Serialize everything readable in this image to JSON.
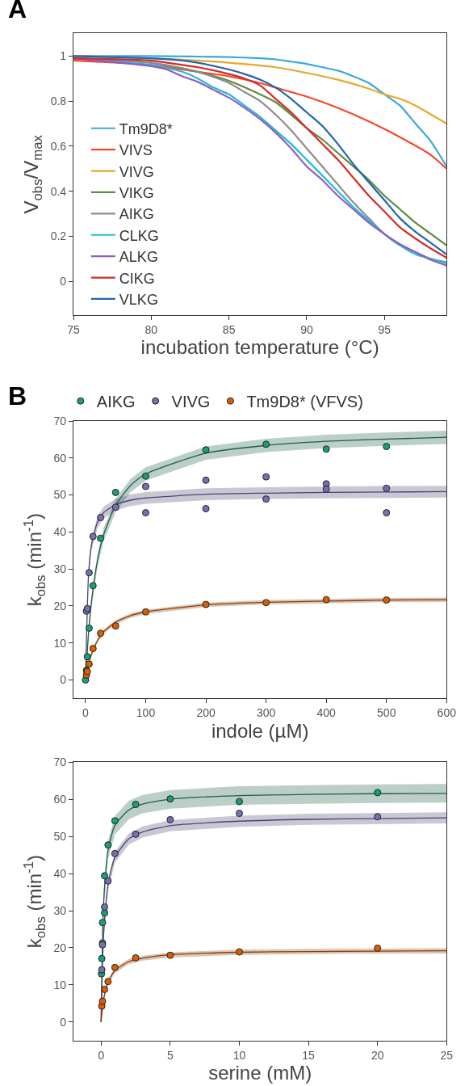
{
  "chart_data": [
    {
      "type": "line",
      "xlabel": "incubation temperature (°C)",
      "ylabel": "V$_{obs}$/V$_{max}$",
      "annotations": [
        "A"
      ],
      "xlim": [
        75,
        99
      ],
      "ylim": [
        -0.15,
        1.1
      ],
      "xticks": [
        75,
        80,
        85,
        90,
        95
      ],
      "yticks": [
        0,
        0.2,
        0.4,
        0.6,
        0.8,
        1
      ],
      "legend": "left",
      "marker": "none",
      "series": [
        {
          "name": "Tm9D8*",
          "color": "#3aa8e0",
          "x": [
            75,
            80,
            85,
            87,
            88,
            89,
            90,
            91,
            92,
            93,
            94,
            95,
            96,
            97,
            98,
            99
          ],
          "values": [
            1.0,
            1.0,
            0.995,
            0.99,
            0.985,
            0.975,
            0.965,
            0.95,
            0.935,
            0.91,
            0.88,
            0.83,
            0.78,
            0.7,
            0.62,
            0.51
          ]
        },
        {
          "name": "VIVS",
          "color": "#f5482a",
          "x": [
            75,
            80,
            83,
            85,
            87,
            88,
            90,
            92,
            94,
            96,
            98,
            99
          ],
          "values": [
            0.98,
            0.96,
            0.93,
            0.91,
            0.88,
            0.86,
            0.82,
            0.77,
            0.71,
            0.64,
            0.56,
            0.5
          ]
        },
        {
          "name": "VIVG",
          "color": "#e6a82c",
          "x": [
            75,
            80,
            83,
            85,
            88,
            90,
            92,
            94,
            95,
            96,
            97,
            98,
            99
          ],
          "values": [
            1.0,
            0.99,
            0.98,
            0.97,
            0.95,
            0.925,
            0.895,
            0.855,
            0.83,
            0.81,
            0.78,
            0.74,
            0.7
          ]
        },
        {
          "name": "VIKG",
          "color": "#5e8c3a",
          "x": [
            75,
            80,
            83,
            85,
            87,
            88,
            89,
            90,
            91,
            92,
            93,
            94,
            95,
            96,
            97,
            98,
            99
          ],
          "values": [
            0.99,
            0.97,
            0.93,
            0.89,
            0.83,
            0.795,
            0.74,
            0.68,
            0.63,
            0.57,
            0.51,
            0.45,
            0.38,
            0.32,
            0.26,
            0.21,
            0.16
          ]
        },
        {
          "name": "AIKG",
          "color": "#8c8c8c",
          "x": [
            75,
            80,
            83,
            85,
            86,
            87,
            88,
            89,
            90,
            91,
            92,
            93,
            94,
            95,
            96,
            97,
            98,
            99
          ],
          "values": [
            0.99,
            0.97,
            0.93,
            0.88,
            0.84,
            0.8,
            0.74,
            0.67,
            0.59,
            0.51,
            0.43,
            0.35,
            0.28,
            0.21,
            0.16,
            0.13,
            0.1,
            0.085
          ]
        },
        {
          "name": "CLKG",
          "color": "#22bcd4",
          "x": [
            75,
            80,
            82,
            83,
            84,
            85,
            86,
            87,
            88,
            89,
            90,
            91,
            92,
            93,
            94,
            95,
            96,
            97,
            98,
            99
          ],
          "values": [
            0.99,
            0.96,
            0.93,
            0.9,
            0.86,
            0.83,
            0.78,
            0.73,
            0.67,
            0.61,
            0.54,
            0.47,
            0.4,
            0.33,
            0.27,
            0.21,
            0.16,
            0.12,
            0.1,
            0.08
          ]
        },
        {
          "name": "ALKG",
          "color": "#8f5cc8",
          "x": [
            75,
            80,
            81,
            82,
            83,
            84,
            85,
            86,
            87,
            88,
            89,
            90,
            91,
            92,
            93,
            94,
            95,
            96,
            97,
            98,
            99
          ],
          "values": [
            0.99,
            0.955,
            0.94,
            0.91,
            0.885,
            0.85,
            0.815,
            0.77,
            0.72,
            0.66,
            0.59,
            0.51,
            0.45,
            0.38,
            0.32,
            0.26,
            0.21,
            0.165,
            0.13,
            0.095,
            0.07
          ]
        },
        {
          "name": "CIKG",
          "color": "#d42a2a",
          "x": [
            75,
            80,
            82,
            83,
            85,
            86,
            87,
            88,
            89,
            90,
            91,
            92,
            93,
            94,
            95,
            96,
            97,
            98,
            99
          ],
          "values": [
            0.99,
            0.98,
            0.96,
            0.95,
            0.92,
            0.9,
            0.87,
            0.81,
            0.75,
            0.68,
            0.61,
            0.54,
            0.46,
            0.38,
            0.31,
            0.24,
            0.19,
            0.145,
            0.105
          ]
        },
        {
          "name": "VLKG",
          "color": "#1f67b0",
          "x": [
            75,
            80,
            82,
            83,
            85,
            86,
            87,
            88,
            89,
            90,
            91,
            92,
            93,
            94,
            95,
            96,
            97,
            98,
            99
          ],
          "values": [
            1.0,
            0.99,
            0.98,
            0.97,
            0.94,
            0.92,
            0.895,
            0.86,
            0.81,
            0.75,
            0.69,
            0.61,
            0.52,
            0.44,
            0.36,
            0.28,
            0.22,
            0.17,
            0.12
          ]
        }
      ]
    },
    {
      "type": "scatter",
      "xlabel": "indole (µM)",
      "ylabel": "k$_{obs}$ (min$^{-1}$)",
      "annotations": [
        "B"
      ],
      "xlim": [
        -20,
        600
      ],
      "ylim": [
        -5,
        70
      ],
      "xticks": [
        0,
        100,
        200,
        300,
        400,
        500,
        600
      ],
      "yticks": [
        0,
        10,
        20,
        30,
        40,
        50,
        60,
        70
      ],
      "legend": "top",
      "marker": "circle",
      "series": [
        {
          "name": "AIKG",
          "color": "#1b9e77",
          "x": [
            0,
            1.5,
            3,
            6,
            12.5,
            25,
            50,
            100,
            200,
            300,
            400,
            500
          ],
          "values": [
            0,
            2.6,
            6.3,
            14,
            25.5,
            38.3,
            50.7,
            55.1,
            62.2,
            63.7,
            62.4,
            63.1
          ]
        },
        {
          "name": "VIVG",
          "color": "#7570b3",
          "x": [
            1.5,
            3,
            6,
            12.5,
            25,
            50,
            100,
            100,
            200,
            200,
            300,
            300,
            400,
            400,
            500,
            500
          ],
          "values": [
            18.6,
            19.3,
            29,
            38.8,
            43.9,
            46.7,
            52.3,
            45.2,
            54,
            46.3,
            54.9,
            48.9,
            53,
            51.6,
            51.8,
            45.2
          ]
        },
        {
          "name": "Tm9D8* (VFVS)",
          "color": "#d95f02",
          "x": [
            1.5,
            3,
            6,
            12.5,
            25,
            50,
            100,
            200,
            300,
            400,
            500
          ],
          "values": [
            1.3,
            2.3,
            4.3,
            8.5,
            12.6,
            14.6,
            18.4,
            20.4,
            20.9,
            21.7,
            21.6
          ]
        },
        {
          "type": "line",
          "marker": "none",
          "color": "#1e5e4a",
          "x": [
            0,
            5,
            10,
            20,
            30,
            50,
            75,
            100,
            200,
            300,
            400,
            500,
            600
          ],
          "values": [
            0,
            12.6,
            21.3,
            32.4,
            39.2,
            47.2,
            52.6,
            55.7,
            61.3,
            63.4,
            64.5,
            65.1,
            65.6
          ],
          "lower": [
            0,
            10.8,
            19.5,
            30.6,
            37.4,
            45.4,
            50.8,
            53.9,
            59.5,
            61.6,
            62.7,
            63.3,
            63.8
          ],
          "upper": [
            0,
            14.4,
            23.1,
            34.2,
            41.0,
            49.0,
            54.4,
            57.5,
            63.1,
            65.2,
            66.3,
            66.9,
            67.4
          ]
        },
        {
          "type": "line",
          "marker": "none",
          "color": "#4a4670",
          "x": [
            0,
            5,
            10,
            20,
            30,
            50,
            75,
            100,
            200,
            300,
            400,
            500,
            600
          ],
          "values": [
            0,
            28.4,
            36.6,
            42.7,
            45.2,
            47.4,
            48.6,
            49.2,
            50.2,
            50.5,
            50.7,
            50.8,
            50.9
          ],
          "lower": [
            0,
            26.8,
            35.0,
            41.1,
            43.6,
            45.8,
            47.0,
            47.6,
            48.6,
            48.9,
            49.1,
            49.2,
            49.3
          ],
          "upper": [
            0,
            30.0,
            38.2,
            44.3,
            46.8,
            49.0,
            50.2,
            50.8,
            51.8,
            52.1,
            52.3,
            52.4,
            52.5
          ]
        },
        {
          "type": "line",
          "marker": "none",
          "color": "#8a3f0a",
          "x": [
            0,
            5,
            10,
            20,
            30,
            50,
            75,
            100,
            200,
            300,
            400,
            500,
            600
          ],
          "values": [
            0,
            4.2,
            7.0,
            10.7,
            13.0,
            15.6,
            17.4,
            18.4,
            20.3,
            21.0,
            21.3,
            21.6,
            21.7
          ],
          "lower": [
            0,
            3.6,
            6.4,
            10.1,
            12.4,
            15.0,
            16.8,
            17.8,
            19.7,
            20.4,
            20.7,
            21.0,
            21.1
          ],
          "upper": [
            0,
            4.8,
            7.6,
            11.3,
            13.6,
            16.2,
            18.0,
            19.0,
            20.9,
            21.6,
            21.9,
            22.2,
            22.3
          ]
        }
      ]
    },
    {
      "type": "scatter",
      "xlabel": "serine (mM)",
      "ylabel": "k$_{obs}$ (min$^{-1}$)",
      "xlim": [
        -2,
        25
      ],
      "ylim": [
        -5,
        70
      ],
      "xticks": [
        0,
        5,
        10,
        15,
        20,
        25
      ],
      "yticks": [
        0,
        10,
        20,
        30,
        40,
        50,
        60,
        70
      ],
      "marker": "circle",
      "series": [
        {
          "color": "#1b9e77",
          "x": [
            0.025,
            0.05,
            0.1,
            0.1,
            0.25,
            0.25,
            0.5,
            1,
            2.5,
            5,
            10,
            20
          ],
          "values": [
            13,
            17.1,
            21.3,
            26.8,
            29.4,
            39.4,
            47.7,
            54.2,
            58.6,
            60.1,
            59.4,
            61.8
          ]
        },
        {
          "color": "#7570b3",
          "x": [
            0.05,
            0.1,
            0.25,
            0.5,
            1,
            2.5,
            5,
            10,
            20
          ],
          "values": [
            14.1,
            20.8,
            31,
            38,
            45.4,
            50.6,
            54.5,
            56.2,
            55.3
          ]
        },
        {
          "color": "#d95f02",
          "x": [
            0.05,
            0.1,
            0.25,
            0.5,
            1,
            2.5,
            5,
            10,
            20
          ],
          "values": [
            4.3,
            5.6,
            8.8,
            10.9,
            14.7,
            17.3,
            18,
            18.9,
            19.9
          ]
        },
        {
          "type": "line",
          "marker": "none",
          "color": "#1e5e4a",
          "x": [
            0,
            0.1,
            0.2,
            0.5,
            1,
            2,
            3,
            5,
            10,
            15,
            20,
            25
          ],
          "values": [
            0,
            23.0,
            33.5,
            46.3,
            53.0,
            57.1,
            58.7,
            60.0,
            61.0,
            61.3,
            61.5,
            61.6
          ],
          "lower": [
            0,
            20.5,
            31.0,
            43.8,
            50.5,
            54.6,
            56.2,
            57.5,
            58.5,
            58.8,
            59.0,
            59.1
          ],
          "upper": [
            0,
            25.5,
            36.0,
            48.8,
            55.5,
            59.6,
            61.2,
            62.5,
            63.5,
            63.8,
            64.0,
            64.1
          ]
        },
        {
          "type": "line",
          "marker": "none",
          "color": "#4a4670",
          "x": [
            0,
            0.1,
            0.2,
            0.5,
            1,
            2,
            3,
            5,
            10,
            15,
            20,
            25
          ],
          "values": [
            0,
            15.9,
            24.7,
            37.0,
            44.4,
            49.3,
            51.2,
            52.9,
            54.1,
            54.6,
            54.8,
            55.0
          ],
          "lower": [
            0,
            14.4,
            23.2,
            35.5,
            42.9,
            47.8,
            49.7,
            51.4,
            52.6,
            53.1,
            53.3,
            53.5
          ],
          "upper": [
            0,
            17.4,
            26.2,
            38.5,
            45.9,
            50.8,
            52.7,
            54.4,
            55.6,
            56.1,
            56.3,
            56.5
          ]
        },
        {
          "type": "line",
          "marker": "none",
          "color": "#8a3f0a",
          "x": [
            0,
            0.1,
            0.2,
            0.5,
            1,
            2,
            3,
            5,
            10,
            15,
            20,
            25
          ],
          "values": [
            0,
            3.9,
            6.5,
            10.8,
            13.9,
            16.3,
            17.2,
            18.1,
            18.8,
            19.0,
            19.1,
            19.2
          ],
          "lower": [
            0,
            3.2,
            5.8,
            10.1,
            13.2,
            15.6,
            16.5,
            17.4,
            18.1,
            18.3,
            18.4,
            18.5
          ],
          "upper": [
            0,
            4.6,
            7.2,
            11.5,
            14.6,
            17.0,
            17.9,
            18.8,
            19.5,
            19.7,
            19.8,
            19.9
          ]
        }
      ]
    }
  ]
}
